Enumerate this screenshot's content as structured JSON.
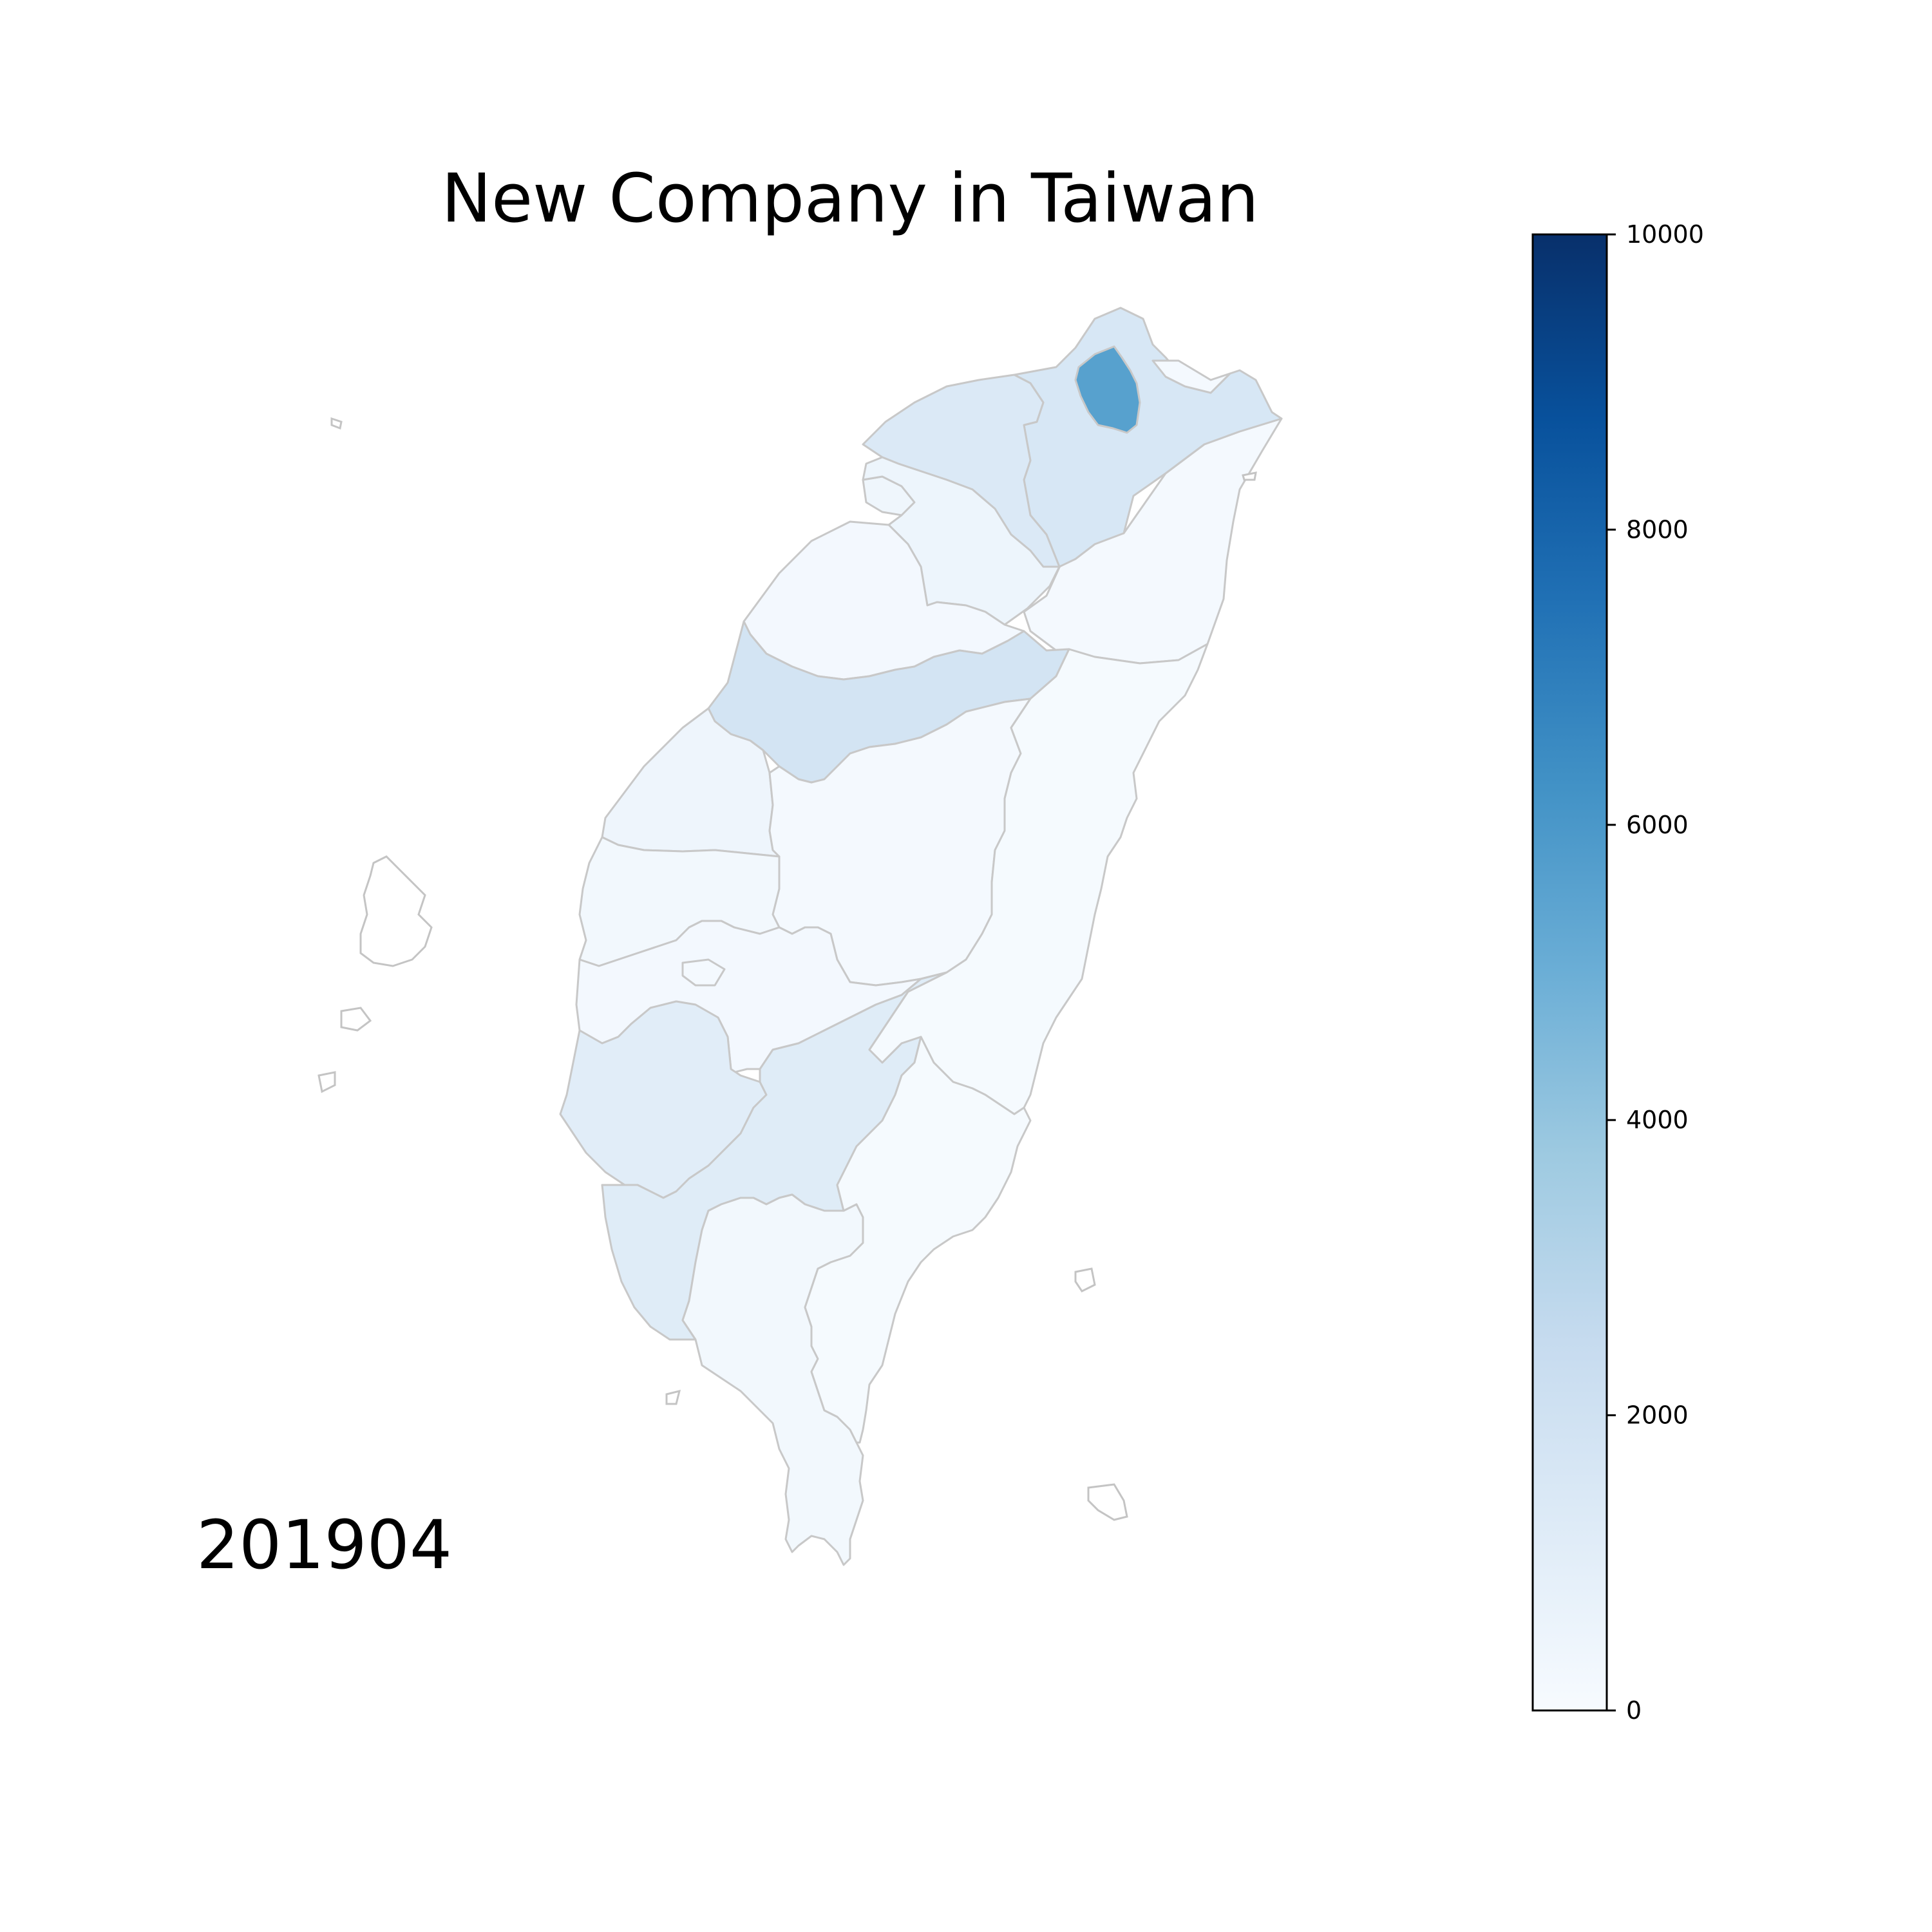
{
  "title": "New Company in Taiwan",
  "date_label": "201904",
  "colorbar": {
    "min": 0,
    "max": 10000,
    "ticks": [
      "0",
      "2000",
      "4000",
      "6000",
      "8000",
      "10000"
    ],
    "colormap": "Blues",
    "colors": [
      "#f7fbff",
      "#deebf7",
      "#c6dbef",
      "#9ecae1",
      "#6baed6",
      "#4292c6",
      "#2171b5",
      "#08519c",
      "#08306b"
    ]
  },
  "chart_data": {
    "type": "choropleth",
    "title": "New Company in Taiwan",
    "period": "201904",
    "value_range": [
      0,
      10000
    ],
    "regions": [
      {
        "key": "taipei",
        "value": 5600
      },
      {
        "key": "new_taipei",
        "value": 1600
      },
      {
        "key": "keelung",
        "value": 150
      },
      {
        "key": "taoyuan",
        "value": 1400
      },
      {
        "key": "hsinchu_county",
        "value": 500
      },
      {
        "key": "hsinchu_city",
        "value": 400
      },
      {
        "key": "miaoli",
        "value": 200
      },
      {
        "key": "taichung",
        "value": 1800
      },
      {
        "key": "changhua",
        "value": 450
      },
      {
        "key": "nantou",
        "value": 150
      },
      {
        "key": "yunlin",
        "value": 250
      },
      {
        "key": "chiayi_county",
        "value": 200
      },
      {
        "key": "chiayi_city",
        "value": 150
      },
      {
        "key": "tainan",
        "value": 1100
      },
      {
        "key": "kaohsiung",
        "value": 1200
      },
      {
        "key": "pingtung",
        "value": 250
      },
      {
        "key": "yilan",
        "value": 130
      },
      {
        "key": "hualien",
        "value": 100
      },
      {
        "key": "taitung",
        "value": 80
      }
    ]
  }
}
